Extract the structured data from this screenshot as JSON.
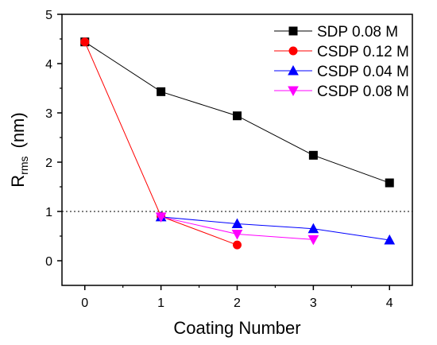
{
  "chart_data": {
    "type": "line",
    "title": "",
    "xlabel": "Coating Number",
    "ylabel_main": "R",
    "ylabel_sub": "rms",
    "ylabel_unit": "(nm)",
    "xlim": [
      -0.3,
      4.3
    ],
    "ylim": [
      -0.5,
      5
    ],
    "xticks": [
      0,
      1,
      2,
      3,
      4
    ],
    "yticks": [
      0,
      1,
      2,
      3,
      4,
      5
    ],
    "reference_line": {
      "y": 1,
      "style": "dotted",
      "color": "#333333"
    },
    "grid": false,
    "legend_position": "top-right",
    "series": [
      {
        "name": "SDP 0.08 M",
        "color": "#000000",
        "marker": "square",
        "x": [
          0,
          1,
          2,
          3,
          4
        ],
        "y": [
          4.44,
          3.43,
          2.94,
          2.14,
          1.58
        ]
      },
      {
        "name": "CSDP 0.12 M",
        "color": "#ff0000",
        "marker": "circle",
        "x": [
          0,
          1,
          2
        ],
        "y": [
          4.44,
          0.9,
          0.32
        ]
      },
      {
        "name": "CSDP 0.04 M",
        "color": "#0000ff",
        "marker": "triangle-up",
        "x": [
          1,
          2,
          3,
          4
        ],
        "y": [
          0.89,
          0.75,
          0.65,
          0.42
        ]
      },
      {
        "name": "CSDP 0.08 M",
        "color": "#ff00ff",
        "marker": "triangle-down",
        "x": [
          1,
          2,
          3
        ],
        "y": [
          0.89,
          0.54,
          0.43
        ]
      }
    ]
  }
}
